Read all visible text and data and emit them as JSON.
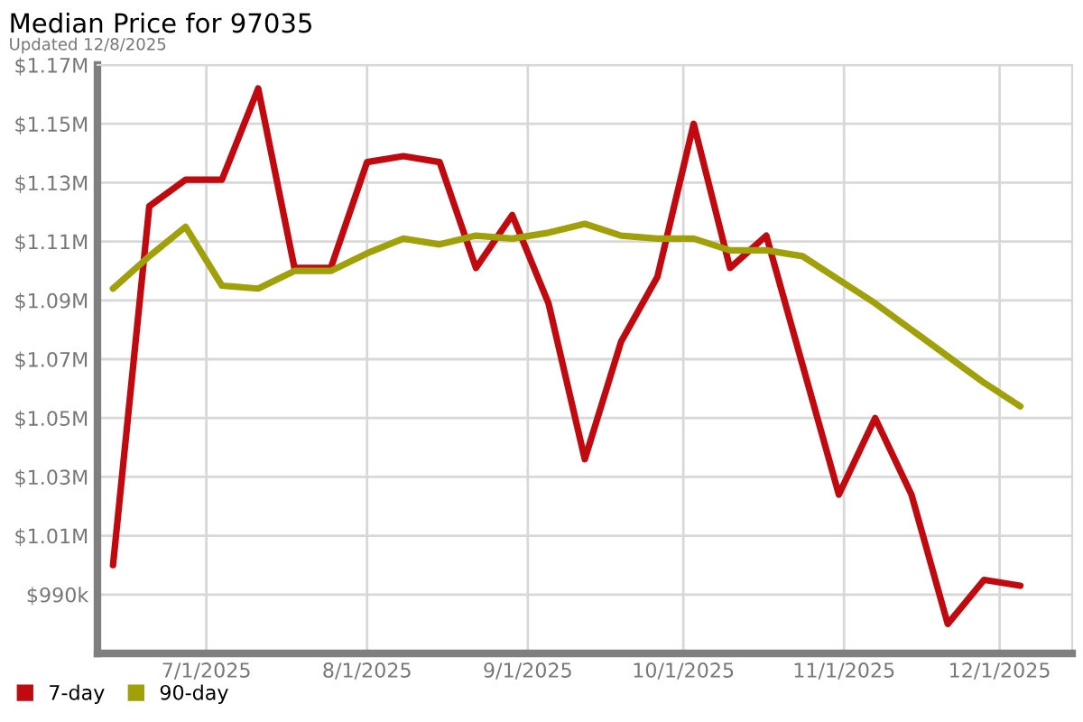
{
  "chart_data": {
    "type": "line",
    "title": "Median Price for 97035",
    "subtitle": "Updated 12/8/2025",
    "x": [
      "2025-06-13",
      "2025-06-20",
      "2025-06-27",
      "2025-07-04",
      "2025-07-11",
      "2025-07-18",
      "2025-07-25",
      "2025-08-01",
      "2025-08-08",
      "2025-08-15",
      "2025-08-22",
      "2025-08-29",
      "2025-09-05",
      "2025-09-12",
      "2025-09-19",
      "2025-09-26",
      "2025-10-03",
      "2025-10-10",
      "2025-10-17",
      "2025-10-24",
      "2025-10-31",
      "2025-11-07",
      "2025-11-14",
      "2025-11-21",
      "2025-11-28",
      "2025-12-05"
    ],
    "series": [
      {
        "name": "7-day",
        "color": "#c00a0f",
        "values": [
          1000000,
          1122000,
          1131000,
          1131000,
          1162000,
          1101000,
          1101000,
          1137000,
          1139000,
          1137000,
          1101000,
          1119000,
          1089000,
          1036000,
          1076000,
          1098000,
          1150000,
          1101000,
          1112000,
          1068000,
          1024000,
          1050000,
          1024000,
          980000,
          995000,
          993000
        ]
      },
      {
        "name": "90-day",
        "color": "#a0a00a",
        "values": [
          1094000,
          1105000,
          1115000,
          1095000,
          1094000,
          1100000,
          1100000,
          1106000,
          1111000,
          1109000,
          1112000,
          1111000,
          1113000,
          1116000,
          1112000,
          1111000,
          1111000,
          1107000,
          1107000,
          1105000,
          1097000,
          1089000,
          1080000,
          1071000,
          1062000,
          1054000
        ]
      }
    ],
    "xlim": [
      "2025-06-10",
      "2025-12-15"
    ],
    "xticks": [
      {
        "value": "2025-07-01",
        "label": "7/1/2025"
      },
      {
        "value": "2025-08-01",
        "label": "8/1/2025"
      },
      {
        "value": "2025-09-01",
        "label": "9/1/2025"
      },
      {
        "value": "2025-10-01",
        "label": "10/1/2025"
      },
      {
        "value": "2025-11-01",
        "label": "11/1/2025"
      },
      {
        "value": "2025-12-01",
        "label": "12/1/2025"
      }
    ],
    "ylim": [
      970000,
      1170000
    ],
    "yticks": [
      {
        "value": 990000,
        "label": "$990k"
      },
      {
        "value": 1010000,
        "label": "$1.01M"
      },
      {
        "value": 1030000,
        "label": "$1.03M"
      },
      {
        "value": 1050000,
        "label": "$1.05M"
      },
      {
        "value": 1070000,
        "label": "$1.07M"
      },
      {
        "value": 1090000,
        "label": "$1.09M"
      },
      {
        "value": 1110000,
        "label": "$1.11M"
      },
      {
        "value": 1130000,
        "label": "$1.13M"
      },
      {
        "value": 1150000,
        "label": "$1.15M"
      },
      {
        "value": 1170000,
        "label": "$1.17M"
      }
    ],
    "grid": true,
    "legend": "bottom left",
    "marker": "none",
    "line_style": "solid"
  }
}
